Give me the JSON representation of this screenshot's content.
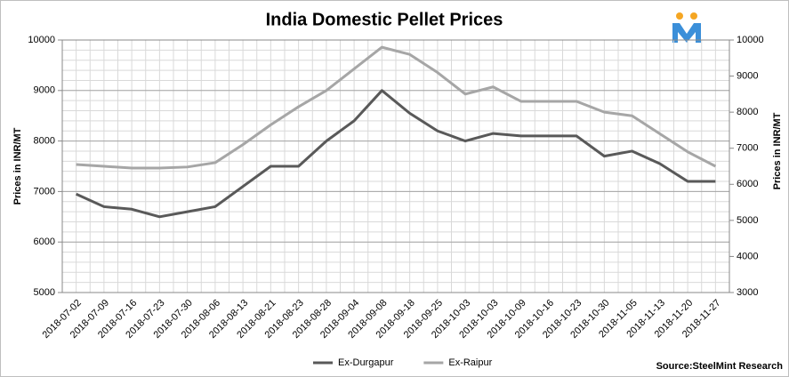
{
  "chart_data": {
    "type": "line",
    "title": "India Domestic Pellet Prices",
    "y_label": "Prices in INR/MT",
    "y2_label": "Prices in INR/MT",
    "source": "Source:SteelMint Research",
    "categories": [
      "2018-07-02",
      "2018-07-09",
      "2018-07-16",
      "2018-07-23",
      "2018-07-30",
      "2018-08-06",
      "2018-08-13",
      "2018-08-21",
      "2018-08-23",
      "2018-08-28",
      "2018-09-04",
      "2018-09-08",
      "2018-09-18",
      "2018-09-25",
      "2018-10-03",
      "2018-10-03",
      "2018-10-09",
      "2018-10-16",
      "2018-10-23",
      "2018-10-30",
      "2018-11-05",
      "2018-11-13",
      "2018-11-20",
      "2018-11-27"
    ],
    "series": [
      {
        "name": "Ex-Durgapur",
        "color": "#595959",
        "axis": "y",
        "values": [
          6950,
          6700,
          6650,
          6500,
          6600,
          6700,
          7100,
          7500,
          7500,
          8000,
          8400,
          9000,
          8550,
          8200,
          8000,
          8150,
          8100,
          8100,
          8100,
          7700,
          7800,
          7550,
          7200,
          7200
        ]
      },
      {
        "name": "Ex-Raipur",
        "color": "#a6a6a6",
        "axis": "y2",
        "values": [
          6550,
          6500,
          6450,
          6450,
          6480,
          6600,
          7100,
          7650,
          8150,
          8600,
          9200,
          9800,
          9600,
          9100,
          8500,
          8700,
          8300,
          8300,
          8300,
          8000,
          7900,
          7400,
          6900,
          6500
        ]
      }
    ],
    "ylim": [
      5000,
      10000
    ],
    "yticks": [
      5000,
      6000,
      7000,
      8000,
      9000,
      10000
    ],
    "y2lim": [
      3000,
      10000
    ],
    "y2ticks": [
      3000,
      4000,
      5000,
      6000,
      7000,
      8000,
      9000,
      10000
    ],
    "grid": true,
    "legend": "bottom"
  }
}
